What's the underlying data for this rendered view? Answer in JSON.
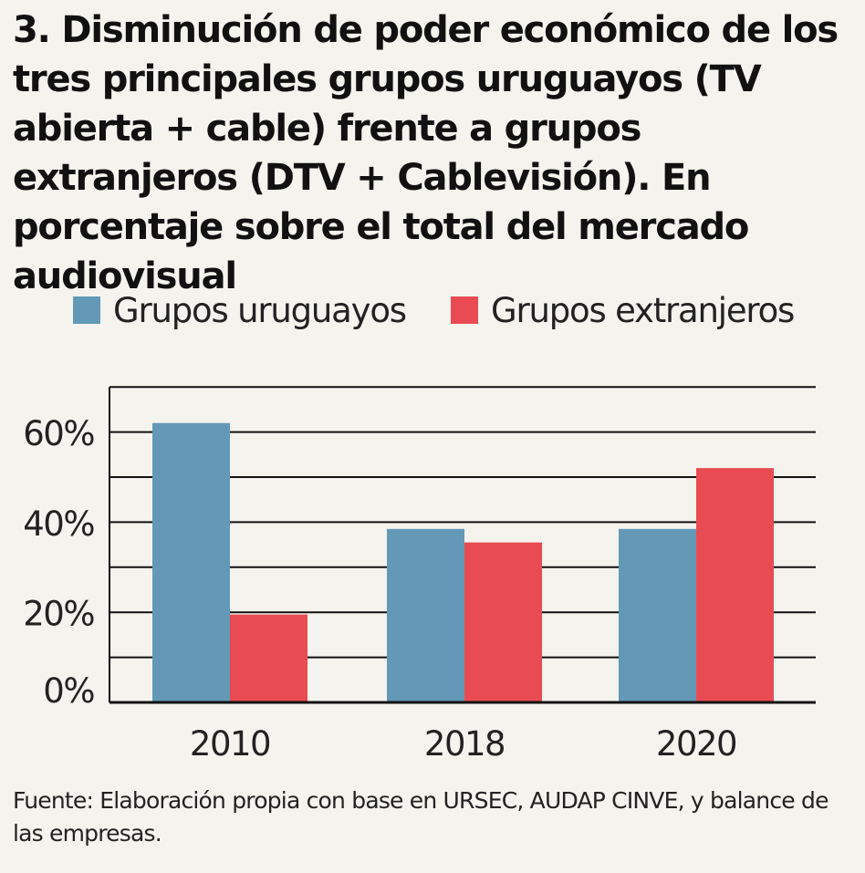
{
  "title": "3. Disminución de poder económico de los tres principales grupos uruguayos (TV abierta + cable) frente a grupos extranjeros (DTV + Cablevisión). En porcentaje sobre el total del mercado audiovisual",
  "source": "Fuente: Elaboración propia con base en URSEC, AUDAP CINVE, y balance de las empresas.",
  "colors": {
    "uruguayos": "#6399b6",
    "extranjeros": "#e84c52",
    "background": "#f4f3ee",
    "gridline": "#111111"
  },
  "chart_data": {
    "type": "bar",
    "categories": [
      "2010",
      "2018",
      "2020"
    ],
    "series": [
      {
        "name": "Grupos uruguayos",
        "values": [
          62,
          38.5,
          38.5
        ]
      },
      {
        "name": "Grupos extranjeros",
        "values": [
          19.5,
          35.5,
          52
        ]
      }
    ],
    "ylim": [
      0,
      70
    ],
    "yticks": [
      0,
      20,
      40,
      60
    ],
    "ytick_labels": [
      "0%",
      "20%",
      "40%",
      "60%"
    ],
    "grid": true,
    "legend_position": "top"
  }
}
